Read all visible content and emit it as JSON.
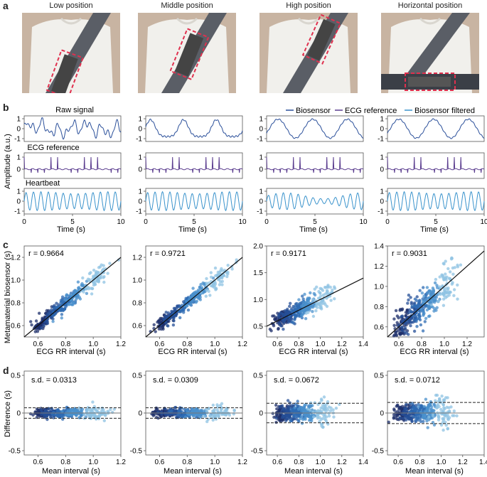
{
  "panels": {
    "a": "a",
    "b": "b",
    "c": "c",
    "d": "d"
  },
  "photos": [
    {
      "title": "Low position"
    },
    {
      "title": "Middle position"
    },
    {
      "title": "High position"
    },
    {
      "title": "Horizontal position"
    }
  ],
  "colors": {
    "biosensor": "#2a4f9a",
    "ecg": "#5b3d8f",
    "filtered": "#3a93cc",
    "dark": "#1d2f6b",
    "mid": "#2e6bb3",
    "light": "#8fc3e3",
    "shirt": "#f1f0ec",
    "belt": "#5a5e66",
    "skin": "#d8ab8e",
    "dashed_box": "#e0304e"
  },
  "panel_b": {
    "row_labels": [
      "Raw signal",
      "ECG reference",
      "Heartbeat"
    ],
    "ylabel": "Amplitude (a.u.)",
    "xlabel": "Time (s)",
    "xticks": [
      "0",
      "5",
      "10"
    ],
    "yticks_raw": [
      "1",
      "0",
      "-1"
    ],
    "yticks_ecg": [
      "1",
      "0"
    ],
    "yticks_hb": [
      "1",
      "0",
      "-1"
    ],
    "legend": [
      "Biosensor",
      "ECG reference",
      "Biosensor filtered"
    ]
  },
  "panel_c": {
    "ylabel": "Metamaterial biosensor (s)",
    "xlabel": "ECG RR interval (s)",
    "subplots": [
      {
        "r": "r = 0.9664",
        "xticks": [
          "0.6",
          "0.8",
          "1.0",
          "1.2"
        ],
        "yticks": [
          "0.6",
          "0.8",
          "1.0",
          "1.2"
        ]
      },
      {
        "r": "r = 0.9721",
        "xticks": [
          "0.6",
          "0.8",
          "1.0",
          "1.2"
        ],
        "yticks": [
          "0.6",
          "0.8",
          "1.0",
          "1.2"
        ]
      },
      {
        "r": "r = 0.9171",
        "xticks": [
          "0.6",
          "0.8",
          "1.0",
          "1.2",
          "1.4"
        ],
        "yticks": [
          "0.5",
          "1.0",
          "1.5",
          "2.0"
        ]
      },
      {
        "r": "r = 0.9031",
        "xticks": [
          "0.6",
          "0.8",
          "1.0",
          "1.2"
        ],
        "yticks": [
          "0.6",
          "0.8",
          "1.0",
          "1.2",
          "1.4"
        ]
      }
    ]
  },
  "panel_d": {
    "ylabel": "Difference (s)",
    "xlabel": "Mean interval (s)",
    "subplots": [
      {
        "sd": "s.d. = 0.0313",
        "xticks": [
          "0.6",
          "0.8",
          "1.0",
          "1.2"
        ],
        "yticks": [
          "0.5",
          "0",
          "-0.5"
        ]
      },
      {
        "sd": "s.d. = 0.0309",
        "xticks": [
          "0.6",
          "0.8",
          "1.0",
          "1.2"
        ],
        "yticks": [
          "0.5",
          "0",
          "-0.5"
        ]
      },
      {
        "sd": "s.d. = 0.0672",
        "xticks": [
          "0.6",
          "0.8",
          "1.0",
          "1.2",
          "1.4"
        ],
        "yticks": [
          "0.5",
          "0",
          "-0.5"
        ]
      },
      {
        "sd": "s.d. = 0.0712",
        "xticks": [
          "0.6",
          "0.8",
          "1.0",
          "1.2",
          "1.4"
        ],
        "yticks": [
          "0.5",
          "0",
          "-0.5"
        ]
      }
    ]
  },
  "chart_data": [
    {
      "type": "line",
      "title": "Raw signal",
      "xlabel": "Time (s)",
      "ylabel": "Amplitude (a.u.)",
      "xlim": [
        0,
        10
      ],
      "ylim": [
        -1,
        1
      ],
      "series": [
        {
          "name": "Biosensor",
          "description": "raw biosensor signal, low/middle/high/horizontal positions"
        }
      ]
    },
    {
      "type": "line",
      "title": "ECG reference",
      "xlim": [
        0,
        10
      ],
      "ylim": [
        -0.5,
        1
      ],
      "series": [
        {
          "name": "ECG reference"
        }
      ]
    },
    {
      "type": "line",
      "title": "Heartbeat",
      "xlim": [
        0,
        10
      ],
      "ylim": [
        -1,
        1
      ],
      "series": [
        {
          "name": "Biosensor filtered"
        }
      ]
    },
    {
      "type": "scatter",
      "xlabel": "ECG RR interval (s)",
      "ylabel": "Metamaterial biosensor (s)",
      "correlations": [
        0.9664,
        0.9721,
        0.9171,
        0.9031
      ]
    },
    {
      "type": "scatter",
      "xlabel": "Mean interval (s)",
      "ylabel": "Difference (s)",
      "ylim": [
        -0.5,
        0.5
      ],
      "sd": [
        0.0313,
        0.0309,
        0.0672,
        0.0712
      ]
    }
  ]
}
